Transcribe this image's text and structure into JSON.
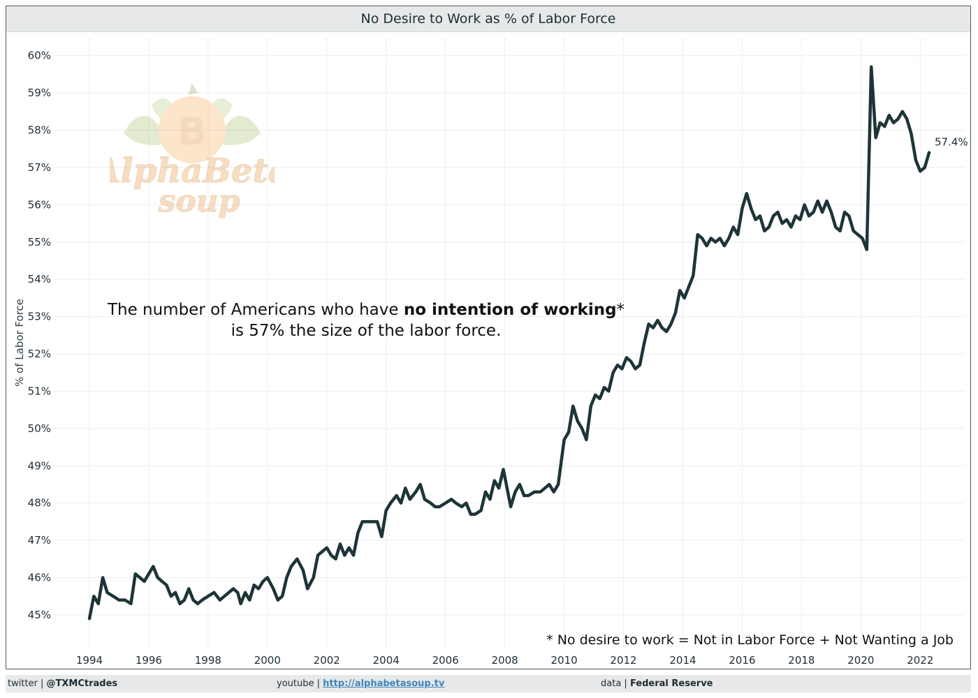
{
  "title": "No Desire to Work as % of Labor Force",
  "annotation": {
    "prefix": "The number of Americans who have ",
    "bold": "no intention of working",
    "suffix": "*",
    "line2": "is 57% the size of the labor force."
  },
  "footnote": "* No desire to work = Not in Labor Force + Not Wanting a Job",
  "footer": {
    "twitter_label": "twitter | ",
    "twitter_handle": "@TXMCtrades",
    "youtube_label": "youtube | ",
    "youtube_url": "http://alphabetasoup.tv",
    "data_label": "data | ",
    "data_source": "Federal Reserve"
  },
  "logo": {
    "text_line1": "AlphaBeta",
    "text_line2": "soup",
    "coin_symbol": "B"
  },
  "colors": {
    "line": "#1d3438",
    "grid": "#eceeef",
    "accent_logo": "#f0a040"
  },
  "chart_data": {
    "type": "line",
    "title": "No Desire to Work as % of Labor Force",
    "ylabel": "% of Labor Force",
    "xlabel": "",
    "ylim": [
      44.1,
      60.5
    ],
    "xlim": [
      1992.8,
      2023.5
    ],
    "yticks": [
      45,
      46,
      47,
      48,
      49,
      50,
      51,
      52,
      53,
      54,
      55,
      56,
      57,
      58,
      59,
      60
    ],
    "ytick_labels": [
      "45%",
      "46%",
      "47%",
      "48%",
      "49%",
      "50%",
      "51%",
      "52%",
      "53%",
      "54%",
      "55%",
      "56%",
      "57%",
      "58%",
      "59%",
      "60%"
    ],
    "xticks": [
      1994,
      1996,
      1998,
      2000,
      2002,
      2004,
      2006,
      2008,
      2010,
      2012,
      2014,
      2016,
      2018,
      2020,
      2022
    ],
    "xtick_labels": [
      "1994",
      "1996",
      "1998",
      "2000",
      "2002",
      "2004",
      "2006",
      "2008",
      "2010",
      "2012",
      "2014",
      "2016",
      "2018",
      "2020",
      "2022"
    ],
    "last_value_label": "57.4%",
    "series": [
      {
        "name": "No desire to work as % of labor force",
        "points": [
          [
            1994.0,
            44.9
          ],
          [
            1994.15,
            45.5
          ],
          [
            1994.3,
            45.3
          ],
          [
            1994.45,
            46.0
          ],
          [
            1994.6,
            45.6
          ],
          [
            1994.8,
            45.5
          ],
          [
            1995.0,
            45.4
          ],
          [
            1995.2,
            45.4
          ],
          [
            1995.4,
            45.3
          ],
          [
            1995.55,
            46.1
          ],
          [
            1995.7,
            46.0
          ],
          [
            1995.85,
            45.9
          ],
          [
            1996.0,
            46.1
          ],
          [
            1996.15,
            46.3
          ],
          [
            1996.3,
            46.0
          ],
          [
            1996.45,
            45.9
          ],
          [
            1996.6,
            45.8
          ],
          [
            1996.75,
            45.5
          ],
          [
            1996.9,
            45.6
          ],
          [
            1997.05,
            45.3
          ],
          [
            1997.2,
            45.4
          ],
          [
            1997.35,
            45.7
          ],
          [
            1997.5,
            45.4
          ],
          [
            1997.65,
            45.3
          ],
          [
            1997.8,
            45.4
          ],
          [
            1998.0,
            45.5
          ],
          [
            1998.2,
            45.6
          ],
          [
            1998.4,
            45.4
          ],
          [
            1998.55,
            45.5
          ],
          [
            1998.7,
            45.6
          ],
          [
            1998.85,
            45.7
          ],
          [
            1999.0,
            45.6
          ],
          [
            1999.1,
            45.3
          ],
          [
            1999.25,
            45.6
          ],
          [
            1999.4,
            45.4
          ],
          [
            1999.55,
            45.8
          ],
          [
            1999.7,
            45.7
          ],
          [
            1999.85,
            45.9
          ],
          [
            2000.0,
            46.0
          ],
          [
            2000.2,
            45.7
          ],
          [
            2000.35,
            45.4
          ],
          [
            2000.5,
            45.5
          ],
          [
            2000.65,
            46.0
          ],
          [
            2000.8,
            46.3
          ],
          [
            2001.0,
            46.5
          ],
          [
            2001.2,
            46.2
          ],
          [
            2001.35,
            45.7
          ],
          [
            2001.55,
            46.0
          ],
          [
            2001.7,
            46.6
          ],
          [
            2001.85,
            46.7
          ],
          [
            2002.0,
            46.8
          ],
          [
            2002.15,
            46.6
          ],
          [
            2002.3,
            46.5
          ],
          [
            2002.45,
            46.9
          ],
          [
            2002.6,
            46.6
          ],
          [
            2002.75,
            46.8
          ],
          [
            2002.9,
            46.6
          ],
          [
            2003.05,
            47.2
          ],
          [
            2003.2,
            47.5
          ],
          [
            2003.35,
            47.5
          ],
          [
            2003.55,
            47.5
          ],
          [
            2003.7,
            47.5
          ],
          [
            2003.85,
            47.1
          ],
          [
            2004.0,
            47.8
          ],
          [
            2004.15,
            48.0
          ],
          [
            2004.35,
            48.2
          ],
          [
            2004.5,
            48.0
          ],
          [
            2004.65,
            48.4
          ],
          [
            2004.8,
            48.1
          ],
          [
            2005.0,
            48.3
          ],
          [
            2005.15,
            48.5
          ],
          [
            2005.3,
            48.1
          ],
          [
            2005.5,
            48.0
          ],
          [
            2005.65,
            47.9
          ],
          [
            2005.8,
            47.9
          ],
          [
            2006.0,
            48.0
          ],
          [
            2006.2,
            48.1
          ],
          [
            2006.35,
            48.0
          ],
          [
            2006.55,
            47.9
          ],
          [
            2006.7,
            48.0
          ],
          [
            2006.85,
            47.7
          ],
          [
            2007.0,
            47.7
          ],
          [
            2007.2,
            47.8
          ],
          [
            2007.35,
            48.3
          ],
          [
            2007.5,
            48.1
          ],
          [
            2007.65,
            48.6
          ],
          [
            2007.8,
            48.4
          ],
          [
            2007.95,
            48.9
          ],
          [
            2008.1,
            48.3
          ],
          [
            2008.2,
            47.9
          ],
          [
            2008.35,
            48.3
          ],
          [
            2008.5,
            48.5
          ],
          [
            2008.65,
            48.2
          ],
          [
            2008.8,
            48.2
          ],
          [
            2009.0,
            48.3
          ],
          [
            2009.2,
            48.3
          ],
          [
            2009.35,
            48.4
          ],
          [
            2009.5,
            48.5
          ],
          [
            2009.65,
            48.3
          ],
          [
            2009.8,
            48.5
          ],
          [
            2010.0,
            49.7
          ],
          [
            2010.15,
            49.9
          ],
          [
            2010.3,
            50.6
          ],
          [
            2010.45,
            50.2
          ],
          [
            2010.6,
            50.0
          ],
          [
            2010.75,
            49.7
          ],
          [
            2010.9,
            50.6
          ],
          [
            2011.05,
            50.9
          ],
          [
            2011.2,
            50.8
          ],
          [
            2011.35,
            51.1
          ],
          [
            2011.5,
            51.0
          ],
          [
            2011.65,
            51.5
          ],
          [
            2011.8,
            51.7
          ],
          [
            2011.95,
            51.6
          ],
          [
            2012.1,
            51.9
          ],
          [
            2012.25,
            51.8
          ],
          [
            2012.4,
            51.6
          ],
          [
            2012.55,
            51.7
          ],
          [
            2012.7,
            52.3
          ],
          [
            2012.85,
            52.8
          ],
          [
            2013.0,
            52.7
          ],
          [
            2013.15,
            52.9
          ],
          [
            2013.3,
            52.7
          ],
          [
            2013.45,
            52.6
          ],
          [
            2013.6,
            52.8
          ],
          [
            2013.75,
            53.1
          ],
          [
            2013.9,
            53.7
          ],
          [
            2014.05,
            53.5
          ],
          [
            2014.2,
            53.8
          ],
          [
            2014.35,
            54.1
          ],
          [
            2014.5,
            55.2
          ],
          [
            2014.65,
            55.1
          ],
          [
            2014.8,
            54.9
          ],
          [
            2014.95,
            55.1
          ],
          [
            2015.1,
            55.0
          ],
          [
            2015.25,
            55.1
          ],
          [
            2015.4,
            54.9
          ],
          [
            2015.55,
            55.1
          ],
          [
            2015.7,
            55.4
          ],
          [
            2015.85,
            55.2
          ],
          [
            2016.0,
            55.9
          ],
          [
            2016.15,
            56.3
          ],
          [
            2016.3,
            55.9
          ],
          [
            2016.45,
            55.6
          ],
          [
            2016.6,
            55.7
          ],
          [
            2016.75,
            55.3
          ],
          [
            2016.9,
            55.4
          ],
          [
            2017.05,
            55.7
          ],
          [
            2017.2,
            55.8
          ],
          [
            2017.35,
            55.5
          ],
          [
            2017.5,
            55.6
          ],
          [
            2017.65,
            55.4
          ],
          [
            2017.8,
            55.7
          ],
          [
            2017.95,
            55.6
          ],
          [
            2018.1,
            56.0
          ],
          [
            2018.25,
            55.7
          ],
          [
            2018.4,
            55.8
          ],
          [
            2018.55,
            56.1
          ],
          [
            2018.7,
            55.8
          ],
          [
            2018.85,
            56.1
          ],
          [
            2019.0,
            55.8
          ],
          [
            2019.15,
            55.4
          ],
          [
            2019.3,
            55.3
          ],
          [
            2019.45,
            55.8
          ],
          [
            2019.6,
            55.7
          ],
          [
            2019.75,
            55.3
          ],
          [
            2019.9,
            55.2
          ],
          [
            2020.05,
            55.1
          ],
          [
            2020.2,
            54.8
          ],
          [
            2020.35,
            59.7
          ],
          [
            2020.5,
            57.8
          ],
          [
            2020.65,
            58.2
          ],
          [
            2020.8,
            58.1
          ],
          [
            2020.95,
            58.4
          ],
          [
            2021.1,
            58.2
          ],
          [
            2021.25,
            58.3
          ],
          [
            2021.4,
            58.5
          ],
          [
            2021.55,
            58.3
          ],
          [
            2021.7,
            57.9
          ],
          [
            2021.85,
            57.2
          ],
          [
            2022.0,
            56.9
          ],
          [
            2022.15,
            57.0
          ],
          [
            2022.3,
            57.4
          ]
        ]
      }
    ]
  }
}
